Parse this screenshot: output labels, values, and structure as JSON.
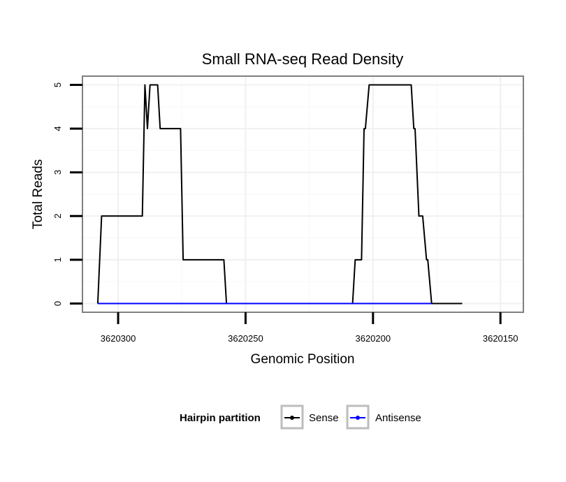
{
  "chart_data": {
    "type": "line",
    "title": "Small RNA-seq Read Density",
    "xlabel": "Genomic Position",
    "ylabel": "Total Reads",
    "x_reversed": true,
    "xlim": [
      3620314,
      3620141
    ],
    "ylim": [
      -0.2,
      5.2
    ],
    "x_ticks": [
      3620300,
      3620250,
      3620200,
      3620150
    ],
    "x_tick_labels": [
      "3620300",
      "3620250",
      "3620200",
      "3620150"
    ],
    "y_ticks": [
      0,
      1,
      2,
      3,
      4,
      5
    ],
    "y_tick_labels": [
      "0",
      "1",
      "2",
      "3",
      "4",
      "5"
    ],
    "grid": true,
    "legend": {
      "title": "Hairpin partition",
      "position": "bottom",
      "entries": [
        "Sense",
        "Antisense"
      ]
    },
    "series": [
      {
        "name": "Sense",
        "color": "#000000",
        "points": [
          [
            3620308,
            0
          ],
          [
            3620306.5,
            2
          ],
          [
            3620290.5,
            2
          ],
          [
            3620289.5,
            5
          ],
          [
            3620288.5,
            4
          ],
          [
            3620287.5,
            5
          ],
          [
            3620284.5,
            5
          ],
          [
            3620283.5,
            4
          ],
          [
            3620275.5,
            4
          ],
          [
            3620274.5,
            1
          ],
          [
            3620258.5,
            1
          ],
          [
            3620257.5,
            0
          ],
          [
            3620208,
            0
          ],
          [
            3620207,
            1
          ],
          [
            3620204.5,
            1
          ],
          [
            3620203.5,
            4
          ],
          [
            3620203,
            4
          ],
          [
            3620201.5,
            5
          ],
          [
            3620185,
            5
          ],
          [
            3620184,
            4
          ],
          [
            3620183.5,
            4
          ],
          [
            3620182,
            2
          ],
          [
            3620180.5,
            2
          ],
          [
            3620179,
            1
          ],
          [
            3620178.5,
            1
          ],
          [
            3620177,
            0
          ],
          [
            3620165,
            0
          ]
        ]
      },
      {
        "name": "Antisense",
        "color": "#0000ff",
        "points": [
          [
            3620308,
            0
          ],
          [
            3620257.5,
            0
          ],
          [
            3620208,
            0
          ],
          [
            3620177,
            0
          ]
        ]
      }
    ]
  }
}
